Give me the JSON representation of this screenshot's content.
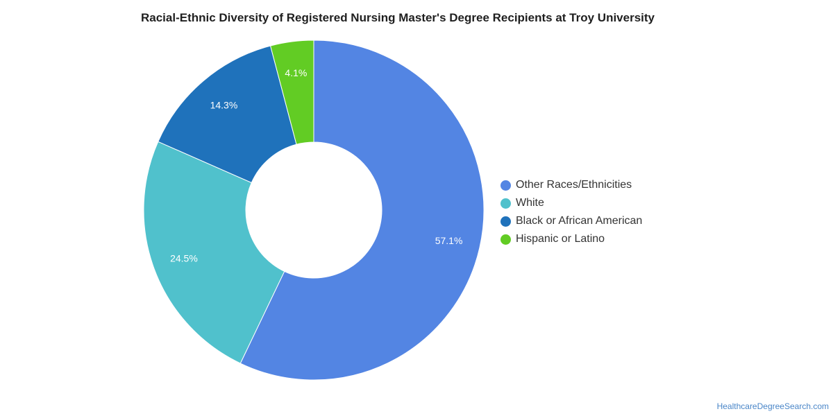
{
  "chart_data": {
    "type": "pie",
    "subtype": "donut",
    "title": "Racial-Ethnic Diversity of Registered Nursing Master's Degree Recipients at Troy University",
    "labels": [
      "Other Races/Ethnicities",
      "White",
      "Black or African American",
      "Hispanic or Latino"
    ],
    "values": [
      57.1,
      24.5,
      14.3,
      4.1
    ],
    "value_labels": [
      "57.1%",
      "24.5%",
      "14.3%",
      "4.1%"
    ],
    "colors": [
      "#5385e3",
      "#50c1cc",
      "#1f72bb",
      "#62cc24"
    ],
    "legend_position": "right"
  },
  "source_text": "HealthcareDegreeSearch.com"
}
